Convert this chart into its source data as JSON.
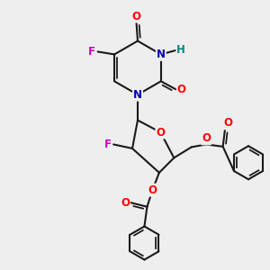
{
  "bg_color": "#eeeeee",
  "bond_color": "#1a1a1a",
  "bond_width": 1.5,
  "atom_colors": {
    "O": "#ff0000",
    "N": "#0000bb",
    "F": "#cc00cc",
    "H": "#008888",
    "C": "#1a1a1a"
  },
  "font_size_atom": 8.5
}
